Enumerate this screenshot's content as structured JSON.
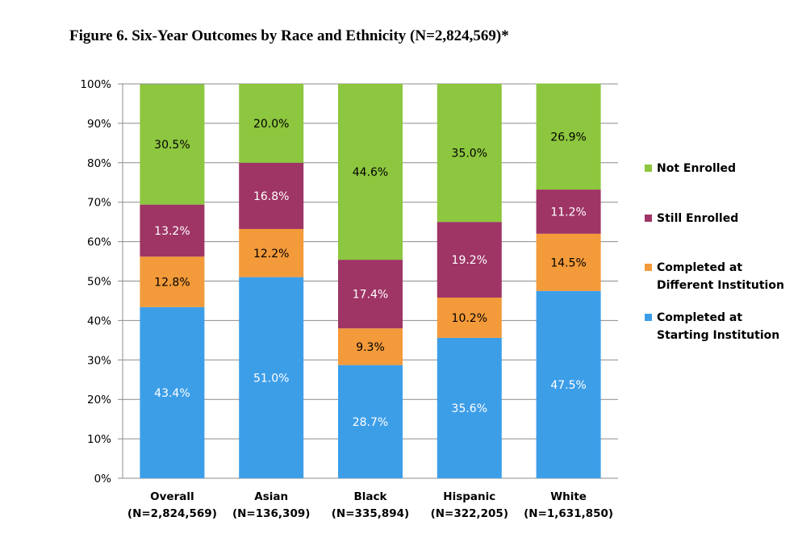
{
  "figure_title": "Figure 6. Six-Year Outcomes by Race and Ethnicity (N=2,824,569)*",
  "chart_data": {
    "type": "bar",
    "stacked": true,
    "title": "Figure 6. Six-Year Outcomes by Race and Ethnicity (N=2,824,569)*",
    "categories": [
      [
        "Overall",
        "(N=2,824,569)"
      ],
      [
        "Asian",
        "(N=136,309)"
      ],
      [
        "Black",
        "(N=335,894)"
      ],
      [
        "Hispanic",
        "(N=322,205)"
      ],
      [
        "White",
        "(N=1,631,850)"
      ]
    ],
    "series": [
      {
        "name": "Completed at Starting Institution",
        "legend_lines": [
          "Completed at",
          "Starting Institution"
        ],
        "color": "#3d9ee8",
        "label_color": "#ffffff",
        "values": [
          43.4,
          51.0,
          28.7,
          35.6,
          47.5
        ],
        "labels": [
          "43.4%",
          "51.0%",
          "28.7%",
          "35.6%",
          "47.5%"
        ]
      },
      {
        "name": "Completed at Different Institution",
        "legend_lines": [
          "Completed at",
          "Different Institution"
        ],
        "color": "#f39a3a",
        "label_color": "#000000",
        "values": [
          12.8,
          12.2,
          9.3,
          10.2,
          14.5
        ],
        "labels": [
          "12.8%",
          "12.2%",
          "9.3%",
          "10.2%",
          "14.5%"
        ]
      },
      {
        "name": "Still Enrolled",
        "legend_lines": [
          "Still Enrolled"
        ],
        "color": "#9e3565",
        "label_color": "#ffffff",
        "values": [
          13.2,
          16.8,
          17.4,
          19.2,
          11.2
        ],
        "labels": [
          "13.2%",
          "16.8%",
          "17.4%",
          "19.2%",
          "11.2%"
        ]
      },
      {
        "name": "Not Enrolled",
        "legend_lines": [
          "Not Enrolled"
        ],
        "color": "#8dc63f",
        "label_color": "#000000",
        "values": [
          30.5,
          20.0,
          44.6,
          35.0,
          26.9
        ],
        "labels": [
          "30.5%",
          "20.0%",
          "44.6%",
          "35.0%",
          "26.9%"
        ]
      }
    ],
    "ylim": [
      0,
      100
    ],
    "yticks": [
      "0%",
      "10%",
      "20%",
      "30%",
      "40%",
      "50%",
      "60%",
      "70%",
      "80%",
      "90%",
      "100%"
    ],
    "grid": true,
    "legend_position": "right"
  }
}
